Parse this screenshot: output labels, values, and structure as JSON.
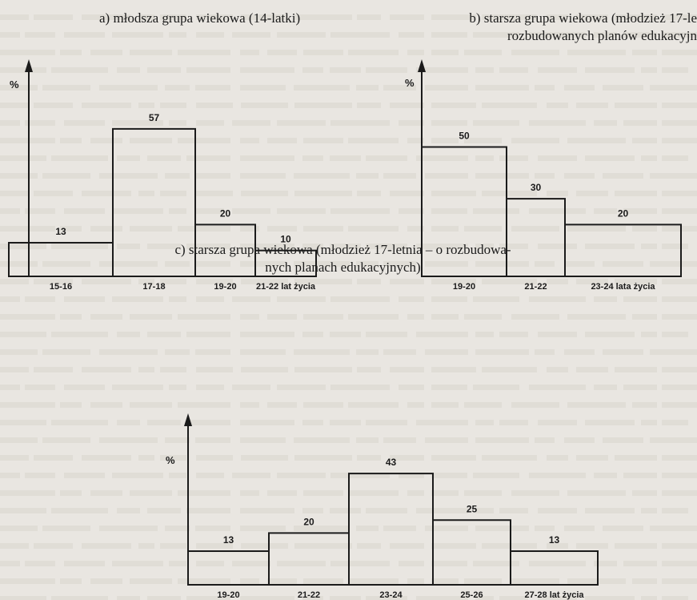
{
  "chart_data": [
    {
      "type": "bar",
      "title": "a) młodsza grupa wiekowa (14-latki)",
      "ylabel": "%",
      "categories": [
        "15-16",
        "17-18",
        "19-20",
        "21-22 lat życia"
      ],
      "values": [
        13,
        57,
        20,
        10
      ],
      "ylim": [
        0,
        75
      ],
      "grid": false
    },
    {
      "type": "bar",
      "title_lines": [
        "b) starsza grupa wiekowa (młodzież 17-le",
        "rozbudowanych planów edukacyjn"
      ],
      "ylabel": "%",
      "categories": [
        "19-20",
        "21-22",
        "23-24 lata życia"
      ],
      "values": [
        50,
        30,
        20
      ],
      "ylim": [
        0,
        75
      ],
      "grid": false
    },
    {
      "type": "bar",
      "title_lines": [
        "c) starsza grupa wiekowa (młodzież 17-letnia – o rozbudowa-",
        "nych planach edukacyjnych)"
      ],
      "ylabel": "%",
      "categories": [
        "19-20",
        "21-22",
        "23-24",
        "25-26",
        "27-28 lat życia"
      ],
      "values": [
        13,
        20,
        43,
        25,
        13
      ],
      "ylim": [
        0,
        75
      ],
      "grid": false
    }
  ]
}
